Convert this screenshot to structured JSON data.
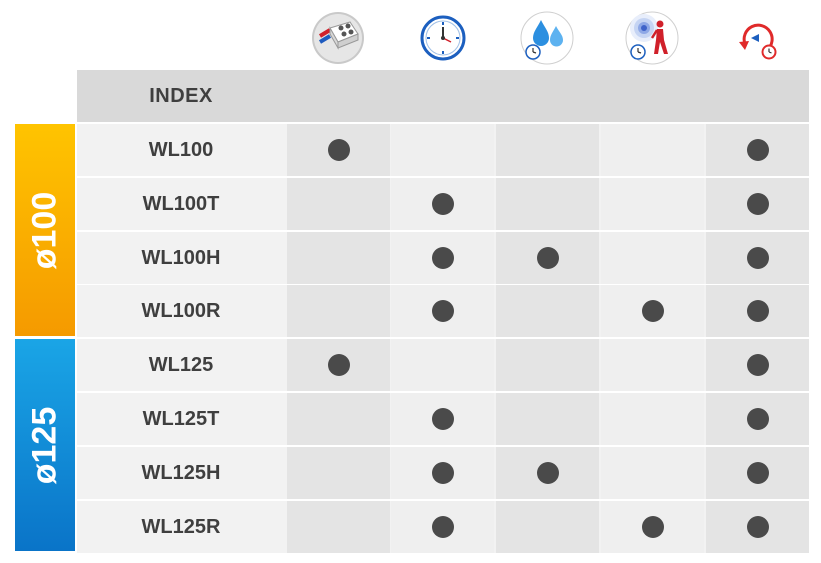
{
  "header": {
    "index_label": "INDEX"
  },
  "icons": [
    {
      "name": "connector-block-icon"
    },
    {
      "name": "clock-icon"
    },
    {
      "name": "humidity-timer-icon"
    },
    {
      "name": "motion-sensor-timer-icon"
    },
    {
      "name": "reverse-rotation-icon"
    }
  ],
  "groups": [
    {
      "label": "ø100",
      "color_top": "#ffc400",
      "color_bottom": "#f59a00"
    },
    {
      "label": "ø125",
      "color_top": "#1aa5e6",
      "color_bottom": "#0a74c8"
    }
  ],
  "rows": [
    {
      "model": "WL100",
      "features": [
        true,
        false,
        false,
        false,
        true
      ]
    },
    {
      "model": "WL100T",
      "features": [
        false,
        true,
        false,
        false,
        true
      ]
    },
    {
      "model": "WL100H",
      "features": [
        false,
        true,
        true,
        false,
        true
      ]
    },
    {
      "model": "WL100R",
      "features": [
        false,
        true,
        false,
        true,
        true
      ]
    },
    {
      "model": "WL125",
      "features": [
        true,
        false,
        false,
        false,
        true
      ]
    },
    {
      "model": "WL125T",
      "features": [
        false,
        true,
        false,
        false,
        true
      ]
    },
    {
      "model": "WL125H",
      "features": [
        false,
        true,
        true,
        false,
        true
      ]
    },
    {
      "model": "WL125R",
      "features": [
        false,
        true,
        false,
        true,
        true
      ]
    }
  ]
}
